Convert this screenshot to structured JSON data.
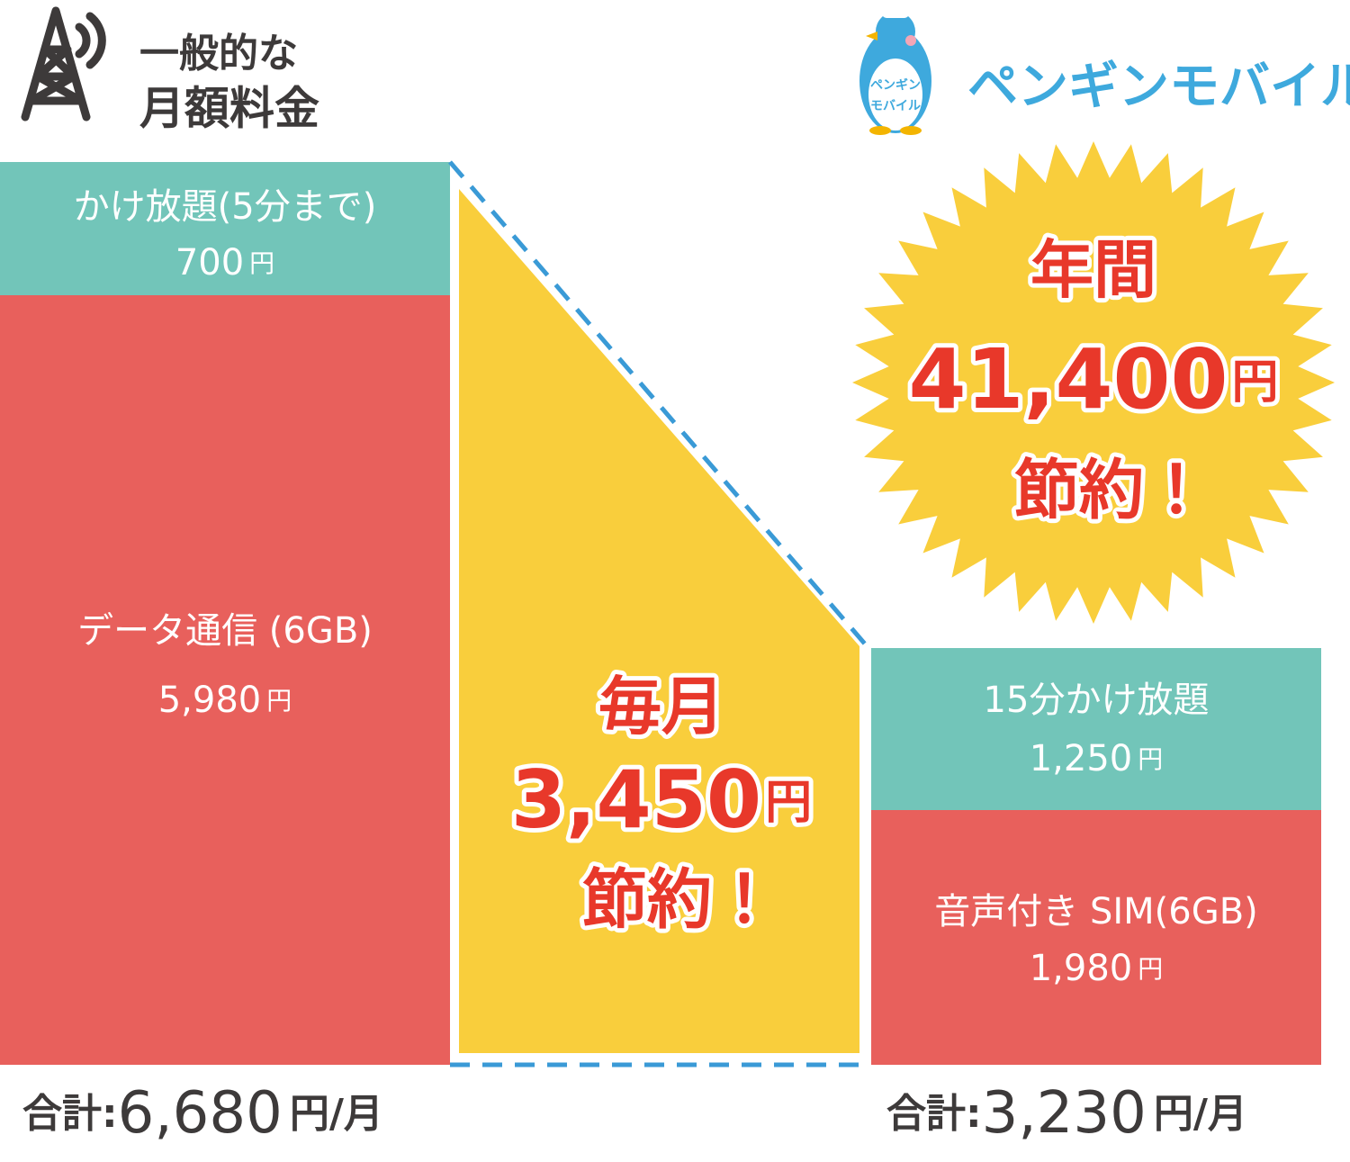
{
  "left": {
    "heading": [
      "一般的な",
      "月額料金"
    ],
    "segments": [
      {
        "label": "かけ放題(5分まで)",
        "price": "700",
        "unit": "円"
      },
      {
        "label": "データ通信 (6GB)",
        "price": "5,980",
        "unit": "円"
      }
    ],
    "total": {
      "prefix": "合計:",
      "amount": "6,680",
      "unit": "円/月"
    }
  },
  "right": {
    "brand": "ペンギンモバイル",
    "mascot_text": [
      "ペンギン",
      "モバイル"
    ],
    "segments": [
      {
        "label": "15分かけ放題",
        "price": "1,250",
        "unit": "円"
      },
      {
        "label": "音声付き SIM(6GB)",
        "price": "1,980",
        "unit": "円"
      }
    ],
    "total": {
      "prefix": "合計:",
      "amount": "3,230",
      "unit": "円/月"
    }
  },
  "monthly_saving": {
    "period": "毎月",
    "amount": "3,450",
    "unit": "円",
    "note": "節約！"
  },
  "annual_saving": {
    "period": "年間",
    "amount": "41,400",
    "unit": "円",
    "note": "節約！"
  }
}
